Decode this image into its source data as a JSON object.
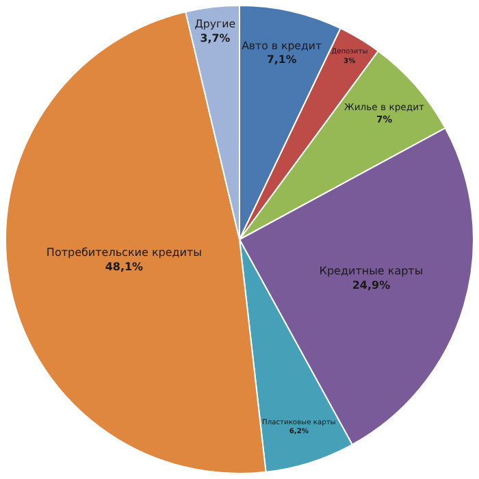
{
  "chart_data": {
    "type": "pie",
    "categories": [
      "Авто в кредит",
      "Депозиты",
      "Жилье в кредит",
      "Кредитные карты",
      "Пластиковые карты",
      "Потребительские кредиты",
      "Другие"
    ],
    "values": [
      7.1,
      3,
      7,
      24.9,
      6.2,
      48.1,
      3.7
    ],
    "value_labels": [
      "7,1%",
      "3%",
      "7%",
      "24,9%",
      "6,2%",
      "48,1%",
      "3,7%"
    ],
    "colors": [
      "#4a78b0",
      "#bd4b48",
      "#97b955",
      "#7a5b9a",
      "#45a0b8",
      "#e0873f",
      "#9fb4d8"
    ],
    "legend": false
  }
}
